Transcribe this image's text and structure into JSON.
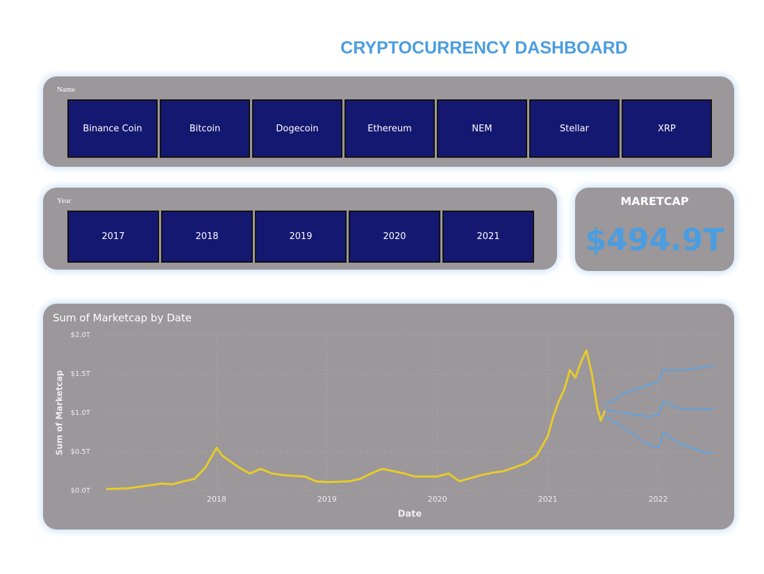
{
  "header": {
    "title": "CRYPTOCURRENCY DASHBOARD"
  },
  "name_slicer": {
    "label": "Name",
    "items": [
      "Binance Coin",
      "Bitcoin",
      "Dogecoin",
      "Ethereum",
      "NEM",
      "Stellar",
      "XRP"
    ]
  },
  "year_slicer": {
    "label": "Year",
    "items": [
      "2017",
      "2018",
      "2019",
      "2020",
      "2021"
    ]
  },
  "card": {
    "label": "MARETCAP",
    "value": "$494.9T"
  },
  "chart_data": {
    "type": "line",
    "title": "Sum of Marketcap by Date",
    "x_label": "Date",
    "y_label": "Sum of Marketcap",
    "xlim": [
      2017,
      2022.55
    ],
    "xticks": [
      2018,
      2019,
      2020,
      2021,
      2022
    ],
    "ylim": [
      0,
      2
    ],
    "yticks": [
      {
        "value": 0,
        "label": "$0.0T"
      },
      {
        "value": 0.5,
        "label": "$0.5T"
      },
      {
        "value": 1,
        "label": "$1.0T"
      },
      {
        "value": 1.5,
        "label": "$1.5T"
      },
      {
        "value": 2,
        "label": "$2.0T"
      }
    ],
    "grid": true,
    "series": [
      {
        "color": "#e8cb2a",
        "x": [
          2017.0,
          2017.2,
          2017.4,
          2017.5,
          2017.6,
          2017.7,
          2017.8,
          2017.9,
          2018.0,
          2018.05,
          2018.1,
          2018.2,
          2018.3,
          2018.4,
          2018.5,
          2018.6,
          2018.7,
          2018.8,
          2018.9,
          2019.0,
          2019.2,
          2019.3,
          2019.4,
          2019.5,
          2019.6,
          2019.7,
          2019.8,
          2019.9,
          2020.0,
          2020.1,
          2020.2,
          2020.3,
          2020.4,
          2020.5,
          2020.6,
          2020.7,
          2020.8,
          2020.9,
          2021.0,
          2021.05,
          2021.1,
          2021.15,
          2021.2,
          2021.25,
          2021.3,
          2021.35,
          2021.4,
          2021.45,
          2021.48,
          2021.52
        ],
        "values": [
          0.02,
          0.03,
          0.07,
          0.09,
          0.08,
          0.12,
          0.15,
          0.3,
          0.55,
          0.45,
          0.4,
          0.3,
          0.22,
          0.28,
          0.22,
          0.2,
          0.19,
          0.18,
          0.12,
          0.11,
          0.12,
          0.15,
          0.22,
          0.28,
          0.25,
          0.22,
          0.18,
          0.18,
          0.18,
          0.22,
          0.12,
          0.16,
          0.2,
          0.23,
          0.25,
          0.3,
          0.35,
          0.45,
          0.7,
          0.95,
          1.15,
          1.3,
          1.55,
          1.45,
          1.65,
          1.8,
          1.5,
          1.05,
          0.9,
          1.03
        ]
      },
      {
        "color": "#5fa3e3",
        "x": [
          2021.52,
          2021.7,
          2021.9,
          2022.0,
          2022.05,
          2022.2,
          2022.4,
          2022.5
        ],
        "values": [
          1.03,
          1.0,
          0.95,
          0.97,
          1.15,
          1.05,
          1.05,
          1.05
        ]
      },
      {
        "color": "#5fa3e3",
        "x": [
          2021.52,
          2021.7,
          2021.9,
          2022.0,
          2022.05,
          2022.2,
          2022.4,
          2022.5
        ],
        "values": [
          1.1,
          1.25,
          1.35,
          1.4,
          1.55,
          1.55,
          1.58,
          1.6
        ]
      },
      {
        "color": "#5fa3e3",
        "x": [
          2021.52,
          2021.7,
          2021.9,
          2022.0,
          2022.05,
          2022.2,
          2022.4,
          2022.5
        ],
        "values": [
          0.95,
          0.8,
          0.6,
          0.55,
          0.75,
          0.6,
          0.5,
          0.48
        ]
      }
    ]
  }
}
